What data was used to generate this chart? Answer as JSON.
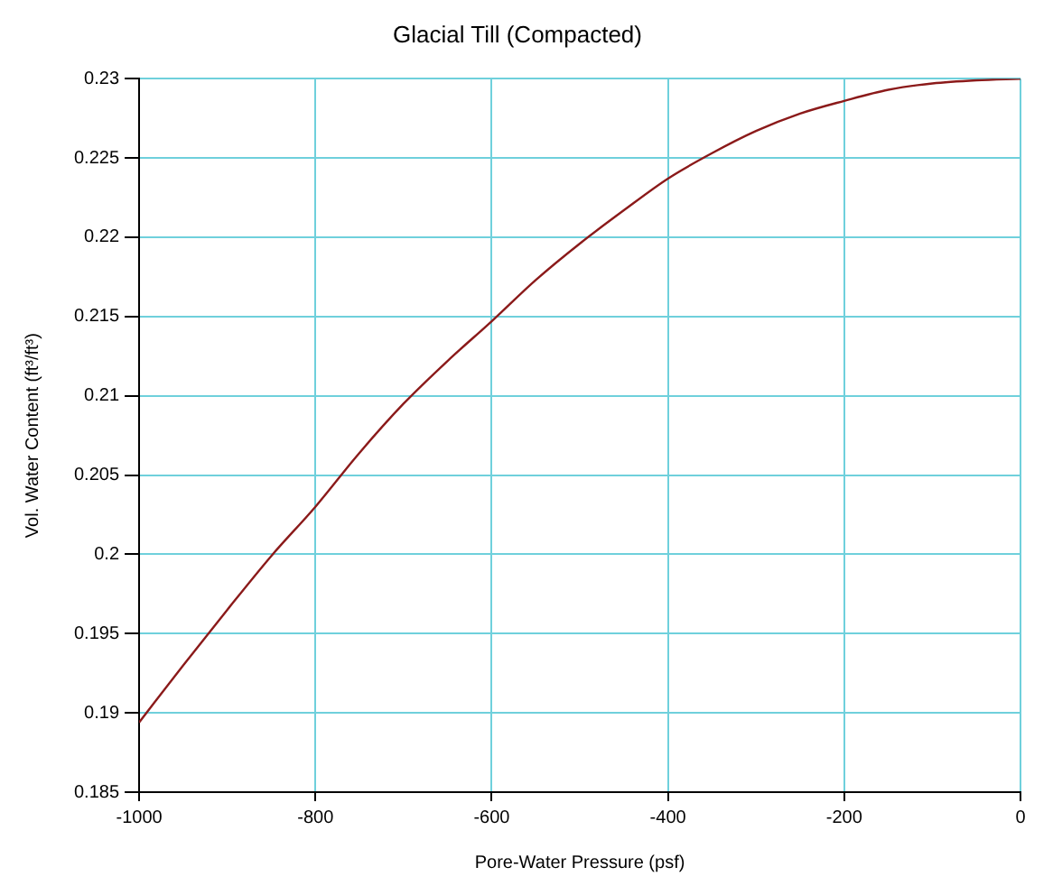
{
  "chart_data": {
    "type": "line",
    "title": "Glacial Till (Compacted)",
    "xlabel": "Pore-Water Pressure (psf)",
    "ylabel": "Vol. Water Content (ft³/ft³)",
    "x": [
      -1000,
      -950,
      -900,
      -850,
      -800,
      -750,
      -700,
      -650,
      -600,
      -550,
      -500,
      -450,
      -400,
      -350,
      -300,
      -250,
      -200,
      -150,
      -100,
      -50,
      0
    ],
    "series": [
      {
        "color": "#8b1a1a",
        "values": [
          0.1894,
          0.193,
          0.1965,
          0.1999,
          0.203,
          0.2064,
          0.2095,
          0.2122,
          0.2147,
          0.2173,
          0.2196,
          0.2217,
          0.2237,
          0.2253,
          0.2267,
          0.2278,
          0.2286,
          0.2293,
          0.2297,
          0.2299,
          0.23
        ]
      }
    ],
    "xlim": [
      -1000,
      0
    ],
    "xticks": [
      -1000,
      -800,
      -600,
      -400,
      -200,
      0
    ],
    "ylim": [
      0.185,
      0.23
    ],
    "yticks": [
      0.185,
      0.19,
      0.195,
      0.2,
      0.205,
      0.21,
      0.215,
      0.22,
      0.225,
      0.23
    ],
    "grid": true,
    "legend": false,
    "marker": "none",
    "line_style": "solid"
  }
}
